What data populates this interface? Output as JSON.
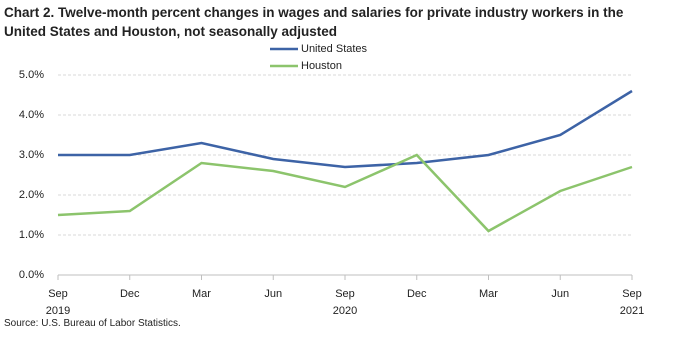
{
  "chart_data": {
    "type": "line",
    "title": "Chart 2. Twelve-month percent changes in wages and salaries for private industry workers in the United States and Houston, not seasonally adjusted",
    "categories": [
      "Sep",
      "Dec",
      "Mar",
      "Jun",
      "Sep",
      "Dec",
      "Mar",
      "Jun",
      "Sep"
    ],
    "category_years": [
      "2019",
      null,
      null,
      null,
      "2020",
      null,
      null,
      null,
      "2021"
    ],
    "series": [
      {
        "name": "United States",
        "color": "#3d63a6",
        "values": [
          3.0,
          3.0,
          3.3,
          2.9,
          2.7,
          2.8,
          3.0,
          3.5,
          4.6
        ]
      },
      {
        "name": "Houston",
        "color": "#8cc46c",
        "values": [
          1.5,
          1.6,
          2.8,
          2.6,
          2.2,
          3.0,
          1.1,
          2.1,
          2.7
        ]
      }
    ],
    "ylim": [
      0,
      5
    ],
    "yticks": [
      {
        "value": 0,
        "label": "0.0%"
      },
      {
        "value": 1,
        "label": "1.0%"
      },
      {
        "value": 2,
        "label": "2.0%"
      },
      {
        "value": 3,
        "label": "3.0%"
      },
      {
        "value": 4,
        "label": "4.0%"
      },
      {
        "value": 5,
        "label": "5.0%"
      }
    ],
    "grid": true,
    "source": "Source: U.S. Bureau of Labor Statistics."
  }
}
